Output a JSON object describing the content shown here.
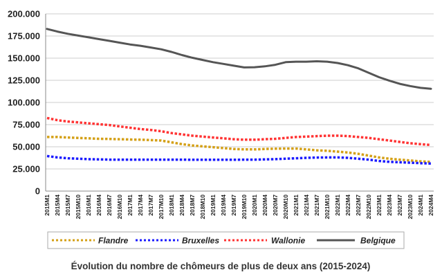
{
  "chart_data": {
    "type": "line",
    "title": "",
    "caption": "Évolution du nombre de chômeurs de plus de deux ans (2015-2024)",
    "xlabel": "",
    "ylabel": "",
    "ylim": [
      0,
      200000
    ],
    "yticks": [
      "0",
      "25.000",
      "50.000",
      "75.000",
      "100.000",
      "125.000",
      "150.000",
      "175.000",
      "200.000"
    ],
    "grid": "horizontal",
    "legend_position": "bottom",
    "x": [
      "2015M1",
      "2015M4",
      "2015M7",
      "2015M10",
      "2016M1",
      "2016M4",
      "2016M7",
      "2016M10",
      "2017M1",
      "2017M4",
      "2017M7",
      "2017M10",
      "2018M1",
      "2018M4",
      "2018M7",
      "2018M10",
      "2019M1",
      "2019M4",
      "2019M7",
      "2019M10",
      "2020M1",
      "2020M4",
      "2020M7",
      "2020M10",
      "2021M1",
      "2021M4",
      "2021M7",
      "2021M10",
      "2022M1",
      "2022M4",
      "2022M7",
      "2022M10",
      "2023M1",
      "2023M4",
      "2023M7",
      "2023M10",
      "2024M1",
      "2024M4"
    ],
    "series": [
      {
        "name": "Flandre",
        "color": "#d4a017",
        "dash": "dotted",
        "values": [
          61000,
          61000,
          60500,
          60000,
          59500,
          59000,
          58800,
          58500,
          58200,
          58000,
          57500,
          57000,
          55000,
          53000,
          51500,
          50500,
          49500,
          48500,
          47500,
          47000,
          47000,
          47500,
          47800,
          48000,
          48000,
          47000,
          46000,
          45500,
          44500,
          43500,
          42000,
          40000,
          38000,
          36500,
          35500,
          34500,
          33500,
          33000
        ]
      },
      {
        "name": "Bruxelles",
        "color": "#1a1aff",
        "dash": "dotted",
        "values": [
          39500,
          38000,
          37000,
          36500,
          36000,
          35800,
          35500,
          35500,
          35500,
          35500,
          35500,
          35500,
          35500,
          35500,
          35300,
          35300,
          35300,
          35300,
          35300,
          35500,
          35500,
          35800,
          36000,
          36500,
          37000,
          37500,
          37800,
          38000,
          38000,
          37500,
          36500,
          35500,
          34000,
          33000,
          32500,
          32000,
          31500,
          31000
        ]
      },
      {
        "name": "Wallonie",
        "color": "#ff3333",
        "dash": "dotted",
        "values": [
          82500,
          80000,
          78500,
          77500,
          76500,
          75500,
          74500,
          73000,
          71500,
          70000,
          69000,
          67500,
          65500,
          64000,
          62500,
          61500,
          60500,
          59500,
          58500,
          58000,
          58000,
          58500,
          59000,
          60000,
          61000,
          61500,
          62000,
          62500,
          62500,
          62000,
          61000,
          60000,
          58500,
          57000,
          55500,
          54000,
          53000,
          52000
        ]
      },
      {
        "name": "Belgique",
        "color": "#555555",
        "dash": "solid",
        "values": [
          183000,
          180000,
          177500,
          175500,
          173500,
          171500,
          169500,
          167500,
          165500,
          164000,
          162000,
          160000,
          157000,
          153500,
          150500,
          148000,
          145500,
          143500,
          141500,
          139500,
          139800,
          140800,
          142500,
          145500,
          146000,
          146000,
          146500,
          146000,
          144500,
          142000,
          138500,
          133500,
          128500,
          124500,
          121000,
          118500,
          116500,
          115500
        ]
      }
    ]
  }
}
